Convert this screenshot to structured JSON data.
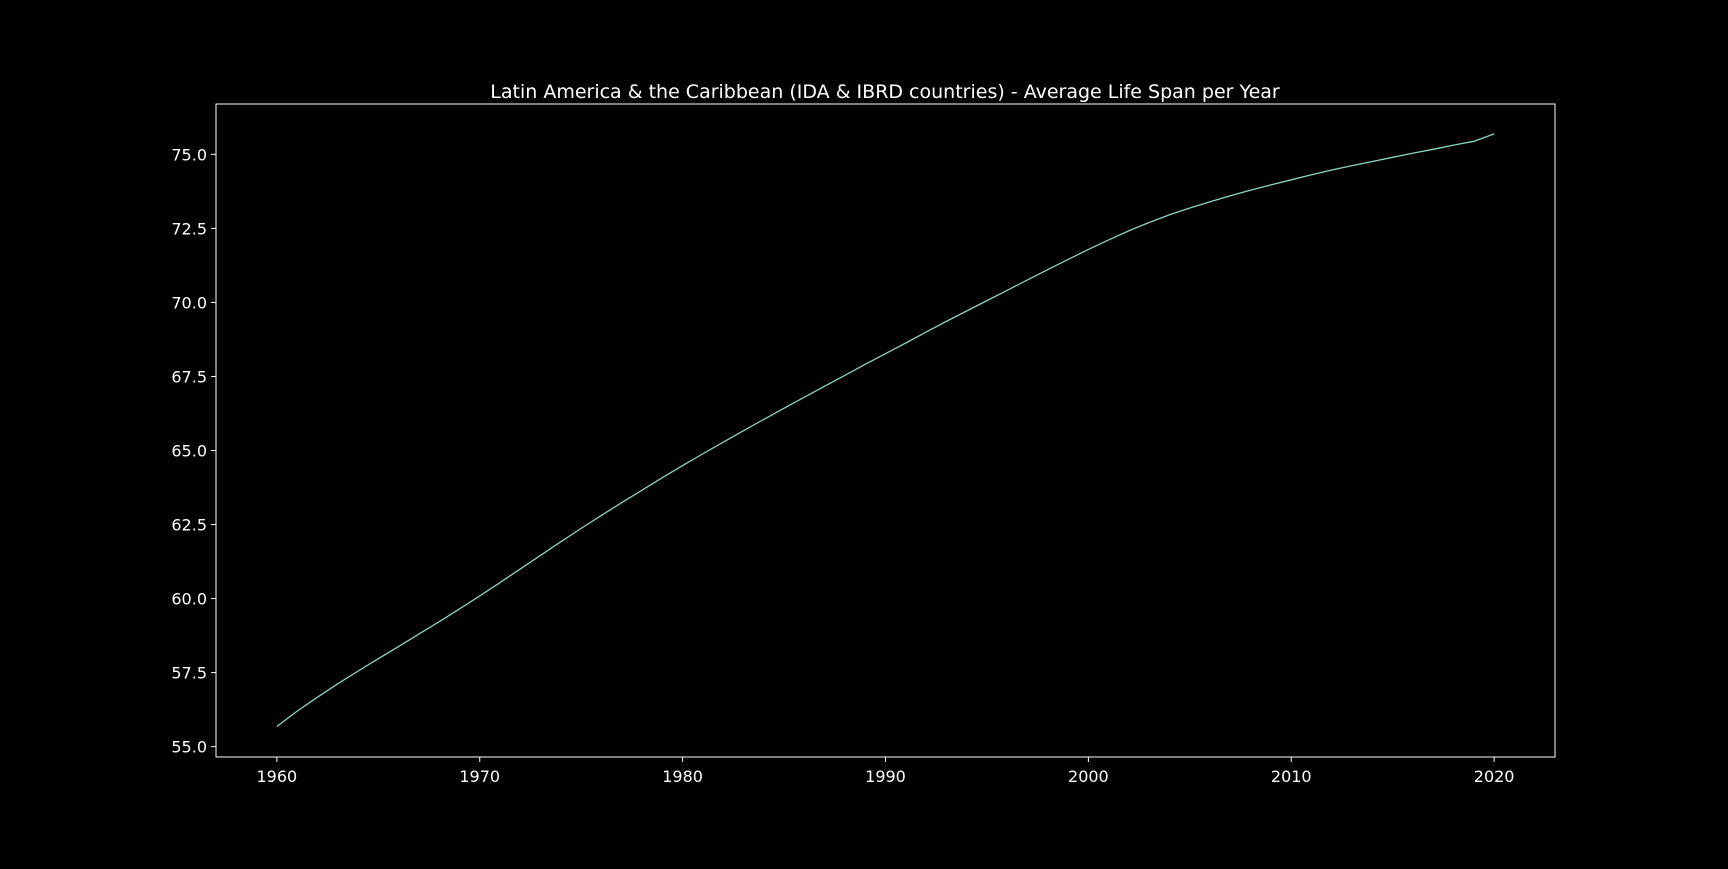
{
  "chart_data": {
    "type": "line",
    "title": "Latin America & the Caribbean (IDA & IBRD countries) - Average Life Span per Year",
    "xlabel": "",
    "ylabel": "",
    "xlim": [
      1957,
      2023
    ],
    "ylim": [
      54.65,
      76.7
    ],
    "x_ticks": [
      1960,
      1970,
      1980,
      1990,
      2000,
      2010,
      2020
    ],
    "y_ticks": [
      55.0,
      57.5,
      60.0,
      62.5,
      65.0,
      67.5,
      70.0,
      72.5,
      75.0
    ],
    "grid": false,
    "legend": "none",
    "colors": {
      "background": "#000000",
      "line": "#8dd3c7",
      "axes": "#ffffff",
      "text": "#ffffff"
    },
    "series": [
      {
        "x": [
          1960,
          1961,
          1962,
          1963,
          1964,
          1965,
          1966,
          1967,
          1968,
          1969,
          1970,
          1971,
          1972,
          1973,
          1974,
          1975,
          1976,
          1977,
          1978,
          1979,
          1980,
          1981,
          1982,
          1983,
          1984,
          1985,
          1986,
          1987,
          1988,
          1989,
          1990,
          1991,
          1992,
          1993,
          1994,
          1995,
          1996,
          1997,
          1998,
          1999,
          2000,
          2001,
          2002,
          2003,
          2004,
          2005,
          2006,
          2007,
          2008,
          2009,
          2010,
          2011,
          2012,
          2013,
          2014,
          2015,
          2016,
          2017,
          2018,
          2019,
          2020
        ],
        "values": [
          55.68,
          56.2,
          56.67,
          57.12,
          57.55,
          57.97,
          58.38,
          58.8,
          59.22,
          59.65,
          60.09,
          60.54,
          61.0,
          61.46,
          61.92,
          62.37,
          62.81,
          63.24,
          63.66,
          64.08,
          64.49,
          64.89,
          65.28,
          65.67,
          66.05,
          66.43,
          66.8,
          67.17,
          67.54,
          67.91,
          68.27,
          68.63,
          69.0,
          69.36,
          69.71,
          70.06,
          70.41,
          70.76,
          71.11,
          71.45,
          71.79,
          72.11,
          72.42,
          72.7,
          72.96,
          73.19,
          73.4,
          73.6,
          73.79,
          73.97,
          74.14,
          74.31,
          74.47,
          74.62,
          74.76,
          74.9,
          75.04,
          75.17,
          75.31,
          75.44,
          75.69
        ]
      }
    ]
  }
}
